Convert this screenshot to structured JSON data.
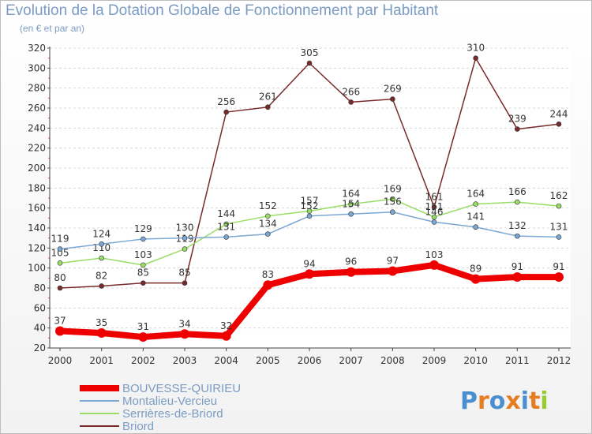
{
  "chart_data": {
    "type": "line",
    "title": "Evolution de la Dotation Globale de Fonctionnement par Habitant",
    "subtitle": "(en € et par an)",
    "xlabel": "",
    "ylabel": "",
    "ylim": [
      20,
      320
    ],
    "ytick_step": 20,
    "grid": true,
    "legend_position": "bottom-left",
    "categories": [
      "2000",
      "2001",
      "2002",
      "2003",
      "2004",
      "2005",
      "2006",
      "2007",
      "2008",
      "2009",
      "2010",
      "2011",
      "2012"
    ],
    "series": [
      {
        "name": "BOUVESSE-QUIRIEU",
        "color": "#ee0000",
        "values": [
          37,
          35,
          31,
          34,
          32,
          83,
          94,
          96,
          97,
          103,
          89,
          91,
          91
        ],
        "labels": [
          "37",
          "35",
          "31",
          "34",
          "32",
          "83",
          "94",
          "96",
          "97",
          "103",
          "89",
          "91",
          "91"
        ]
      },
      {
        "name": "Montalieu-Vercieu",
        "color": "#7ba7d4",
        "values": [
          119,
          124,
          129,
          130,
          131,
          134,
          152,
          154,
          156,
          146,
          141,
          132,
          131
        ],
        "labels": [
          "119",
          "124",
          "129",
          "130",
          "131",
          "134",
          "152",
          "154",
          "156",
          "146",
          "141",
          "132",
          "131"
        ]
      },
      {
        "name": "Serrières-de-Briord",
        "color": "#99dd66",
        "values": [
          105,
          110,
          103,
          119,
          144,
          152,
          157,
          164,
          169,
          151,
          164,
          166,
          162
        ],
        "labels": [
          "105",
          "110",
          "103",
          "119",
          "144",
          "152",
          "157",
          "164",
          "169",
          "151",
          "164",
          "166",
          "162"
        ]
      },
      {
        "name": "Briord",
        "color": "#7a2a2a",
        "values": [
          80,
          82,
          85,
          85,
          256,
          261,
          305,
          266,
          269,
          161,
          310,
          239,
          244
        ],
        "labels": [
          "80",
          "82",
          "85",
          "85",
          "256",
          "261",
          "305",
          "266",
          "269",
          "161",
          "310",
          "239",
          "244"
        ]
      }
    ]
  },
  "brand": {
    "text": "Proxiti",
    "letter_colors": [
      "#4a8fd0",
      "#e57e22",
      "#4a8fd0",
      "#e57e22",
      "#4a8fd0",
      "#e57e22",
      "#99cc33"
    ]
  }
}
